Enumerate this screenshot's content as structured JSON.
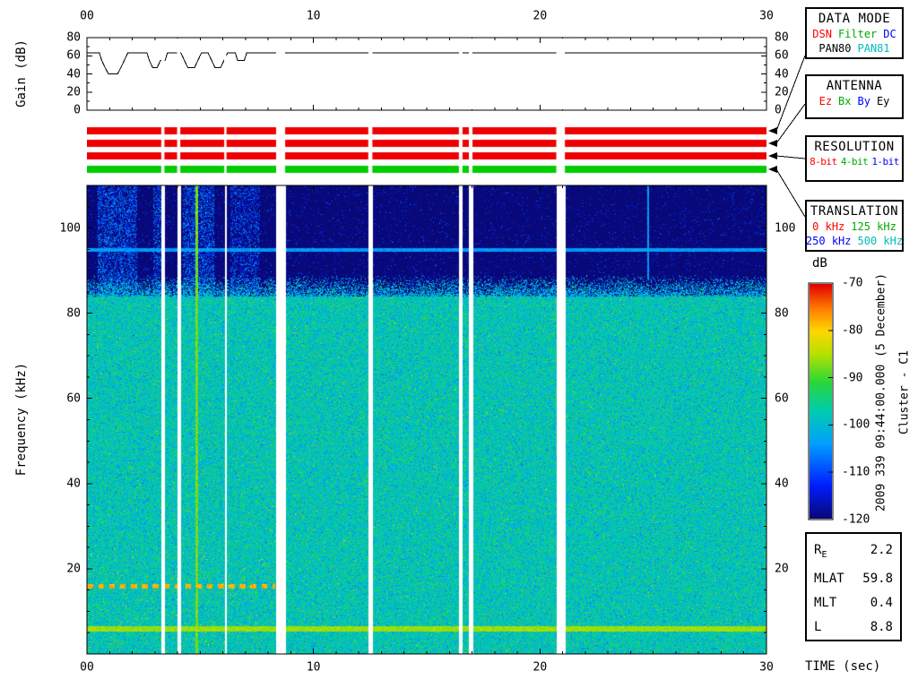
{
  "axes": {
    "gain_label": "Gain (dB)",
    "freq_label": "Frequency (kHz)",
    "time_label": "TIME (sec)",
    "time_ticks": [
      0,
      10,
      20,
      30
    ],
    "time_tick_labels": [
      "00",
      "10",
      "20",
      "30"
    ],
    "gain_ticks": [
      0,
      20,
      40,
      60,
      80
    ],
    "freq_ticks": [
      20,
      40,
      60,
      80,
      100
    ]
  },
  "legend": {
    "data_mode": {
      "title": "DATA MODE",
      "line1": [
        {
          "text": "DSN",
          "color": "#ff0000"
        },
        {
          "text": "Filter",
          "color": "#00aa00"
        },
        {
          "text": "DC",
          "color": "#0000ff"
        }
      ],
      "line2": [
        {
          "text": "PAN80",
          "color": "#000000"
        },
        {
          "text": "PAN81",
          "color": "#00bbbb"
        }
      ]
    },
    "antenna": {
      "title": "ANTENNA",
      "line1": [
        {
          "text": "Ez",
          "color": "#ff0000"
        },
        {
          "text": "Bx",
          "color": "#00aa00"
        },
        {
          "text": "By",
          "color": "#0000ff"
        },
        {
          "text": "Ey",
          "color": "#000000"
        }
      ]
    },
    "resolution": {
      "title": "RESOLUTION",
      "line1": [
        {
          "text": "8-bit",
          "color": "#ff0000"
        },
        {
          "text": "4-bit",
          "color": "#00aa00"
        },
        {
          "text": "1-bit",
          "color": "#0000ff"
        }
      ]
    },
    "translation": {
      "title": "TRANSLATION",
      "line1": [
        {
          "text": "0 kHz",
          "color": "#ff0000"
        },
        {
          "text": "125 kHz",
          "color": "#00aa00"
        }
      ],
      "line2": [
        {
          "text": "250 kHz",
          "color": "#0000ff"
        },
        {
          "text": "500 kHz",
          "color": "#00bbbb"
        }
      ]
    }
  },
  "colorbar": {
    "label": "dB",
    "max_db": -70,
    "min_db": -120,
    "ticks": [
      "-70",
      "-80",
      "-90",
      "-100",
      "-110",
      "-120"
    ]
  },
  "side_text": {
    "timestamp": "2009 339 09:44:00.000 (5 December)",
    "spacecraft": "Cluster - C1"
  },
  "params": {
    "rows": [
      {
        "label": "R",
        "sub": "E",
        "value": "2.2"
      },
      {
        "label": "MLAT",
        "sub": "",
        "value": "59.8"
      },
      {
        "label": "MLT",
        "sub": "",
        "value": "0.4"
      },
      {
        "label": "L",
        "sub": "",
        "value": "8.8"
      }
    ]
  },
  "status_bars": {
    "t_range": [
      0,
      30
    ],
    "rows": [
      {
        "name": "mode-bar",
        "color": "#ee0000"
      },
      {
        "name": "antenna-bar",
        "color": "#ee0000"
      },
      {
        "name": "resolution-bar",
        "color": "#ee0000"
      },
      {
        "name": "translation-bar",
        "color": "#00cc00"
      }
    ],
    "gaps": [
      [
        3.28,
        3.42
      ],
      [
        3.98,
        4.12
      ],
      [
        6.06,
        6.16
      ],
      [
        8.35,
        8.75
      ],
      [
        12.42,
        12.6
      ],
      [
        16.42,
        16.58
      ],
      [
        16.86,
        17.02
      ],
      [
        20.72,
        21.1
      ]
    ]
  },
  "chart_data": [
    {
      "name": "gain",
      "type": "line",
      "title": "Receiver gain vs time",
      "ylabel": "Gain (dB)",
      "x_range": [
        0,
        30
      ],
      "y_range": [
        0,
        80
      ],
      "y_ticks": [
        0,
        20,
        40,
        60,
        80
      ],
      "x_ticks": [
        0,
        10,
        20,
        30
      ],
      "points": [
        [
          0,
          63
        ],
        [
          0.55,
          63
        ],
        [
          0.65,
          55
        ],
        [
          0.8,
          47
        ],
        [
          0.95,
          40
        ],
        [
          1.35,
          40
        ],
        [
          1.5,
          47
        ],
        [
          1.65,
          55
        ],
        [
          1.8,
          63
        ],
        [
          2.65,
          63
        ],
        [
          2.75,
          55
        ],
        [
          2.9,
          47
        ],
        [
          3.1,
          47
        ],
        [
          3.25,
          55
        ],
        [
          3.45,
          55
        ],
        [
          3.55,
          63
        ],
        [
          4.15,
          63
        ],
        [
          4.3,
          55
        ],
        [
          4.45,
          47
        ],
        [
          4.75,
          47
        ],
        [
          4.9,
          55
        ],
        [
          5.05,
          63
        ],
        [
          5.35,
          63
        ],
        [
          5.5,
          55
        ],
        [
          5.65,
          47
        ],
        [
          5.9,
          47
        ],
        [
          6.05,
          55
        ],
        [
          6.2,
          63
        ],
        [
          6.55,
          63
        ],
        [
          6.65,
          55
        ],
        [
          6.95,
          55
        ],
        [
          7.05,
          63
        ],
        [
          30,
          63
        ]
      ]
    },
    {
      "name": "spectrogram",
      "type": "heatmap",
      "title": "Cluster WBD spectrogram",
      "xlabel": "TIME (sec)",
      "ylabel": "Frequency (kHz)",
      "x_range": [
        0,
        30
      ],
      "y_range": [
        0,
        110
      ],
      "x_ticks": [
        0,
        10,
        20,
        30
      ],
      "y_ticks": [
        20,
        40,
        60,
        80,
        100
      ],
      "colorbar": {
        "label": "dB",
        "max": -70,
        "min": -120
      },
      "background_db": -120,
      "noise_floor": {
        "db": -98,
        "sigma": 4,
        "top_khz": 84,
        "fade_top_khz": 89
      },
      "bands": [
        {
          "type": "hline",
          "freq_khz": 95,
          "halfwidth_khz": 0.45,
          "db": -104,
          "t_range": [
            0,
            30
          ]
        },
        {
          "type": "hline",
          "freq_khz": 6,
          "halfwidth_khz": 0.55,
          "db": -86,
          "t_range": [
            0,
            30
          ]
        },
        {
          "type": "dotted-hline",
          "freq_khz": 16,
          "halfwidth_khz": 0.6,
          "db": -78,
          "t_range": [
            0,
            8.3
          ],
          "dash_sec": 0.26,
          "gap_sec": 0.22
        }
      ],
      "vertical_events": [
        {
          "t_range": [
            0.45,
            2.2
          ],
          "f_range": [
            84,
            110
          ],
          "type": "speckle",
          "db": -108,
          "density": 0.45
        },
        {
          "t_range": [
            2.9,
            3.28
          ],
          "f_range": [
            84,
            110
          ],
          "type": "speckle",
          "db": -108,
          "density": 0.4
        },
        {
          "t_range": [
            4.2,
            5.6
          ],
          "f_range": [
            84,
            110
          ],
          "type": "speckle",
          "db": -108,
          "density": 0.45
        },
        {
          "t_range": [
            6.3,
            7.6
          ],
          "f_range": [
            84,
            110
          ],
          "type": "speckle",
          "db": -110,
          "density": 0.35
        },
        {
          "t_range": [
            4.78,
            4.9
          ],
          "f_range": [
            0,
            110
          ],
          "type": "line",
          "db": -88
        },
        {
          "t_range": [
            24.7,
            24.78
          ],
          "f_range": [
            88,
            110
          ],
          "type": "line",
          "db": -104
        }
      ],
      "data_gaps_sec": [
        [
          3.28,
          3.42
        ],
        [
          3.98,
          4.12
        ],
        [
          6.06,
          6.16
        ],
        [
          8.35,
          8.75
        ],
        [
          12.42,
          12.6
        ],
        [
          16.42,
          16.58
        ],
        [
          16.86,
          17.02
        ],
        [
          20.72,
          21.1
        ]
      ]
    }
  ]
}
